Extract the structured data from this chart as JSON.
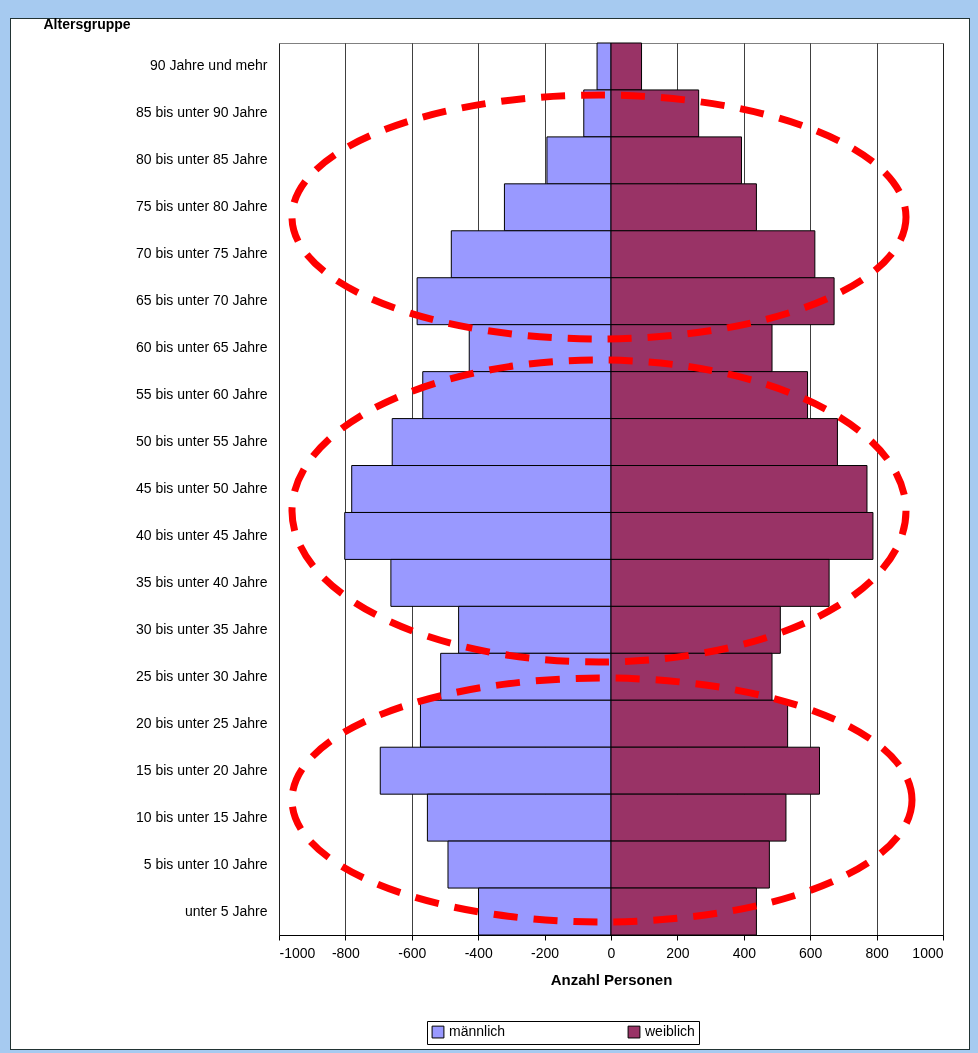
{
  "chart_data": {
    "type": "bar",
    "orientation": "horizontal",
    "ylabel": "Altersgruppe",
    "xlabel": "Anzahl Personen",
    "categories": [
      "90 Jahre und mehr",
      "85 bis unter 90 Jahre",
      "80 bis unter 85 Jahre",
      "75 bis unter 80 Jahre",
      "70 bis unter 75 Jahre",
      "65 bis unter 70 Jahre",
      "60 bis unter 65 Jahre",
      "55 bis unter 60 Jahre",
      "50 bis unter 55 Jahre",
      "45 bis unter 50 Jahre",
      "40 bis unter 45 Jahre",
      "35 bis unter 40 Jahre",
      "30 bis unter 35 Jahre",
      "25 bis unter 30 Jahre",
      "20 bis unter 25 Jahre",
      "15 bis unter 20 Jahre",
      "10 bis unter 15 Jahre",
      "5 bis unter 10 Jahre",
      "unter 5 Jahre"
    ],
    "series": [
      {
        "name": "männlich",
        "color": "#9999ff",
        "values": [
          -42,
          -82,
          -193,
          -321,
          -481,
          -584,
          -427,
          -567,
          -659,
          -781,
          -802,
          -663,
          -459,
          -513,
          -574,
          -695,
          -553,
          -491,
          -399
        ]
      },
      {
        "name": "weiblich",
        "color": "#993366",
        "values": [
          92,
          264,
          393,
          438,
          614,
          672,
          485,
          592,
          682,
          771,
          789,
          657,
          510,
          485,
          532,
          628,
          527,
          477,
          438
        ]
      }
    ],
    "xlim": [
      -1000,
      1000
    ],
    "xticks": [
      -1000,
      -800,
      -600,
      -400,
      -200,
      0,
      200,
      400,
      600,
      800,
      1000
    ],
    "grid": "x",
    "legend": "bottom",
    "stacked": true
  }
}
